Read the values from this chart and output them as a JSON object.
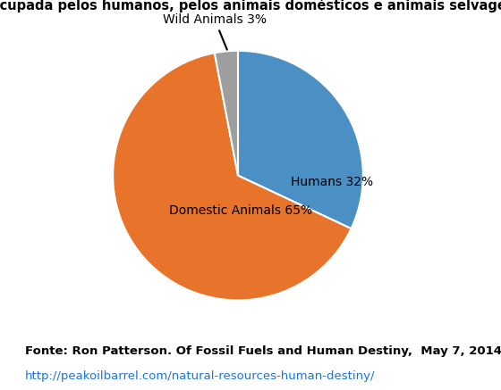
{
  "title": "Área ocupada pelos humanos, pelos animais domésticos e animais selvagens",
  "slices": [
    32,
    65,
    3
  ],
  "labels": [
    "Humans 32%",
    "Domestic Animals 65%",
    "Wild Animals 3%"
  ],
  "colors": [
    "#4a90c4",
    "#e8732a",
    "#9e9e9e"
  ],
  "startangle": 90,
  "source_text": "Fonte: Ron Patterson. Of Fossil Fuels and Human Destiny,  May 7, 2014",
  "url_text": "http://peakoilbarrel.com/natural-resources-human-destiny/",
  "title_fontsize": 10.5,
  "label_fontsize": 10,
  "source_fontsize": 9.5,
  "url_color": "#1a73e8"
}
